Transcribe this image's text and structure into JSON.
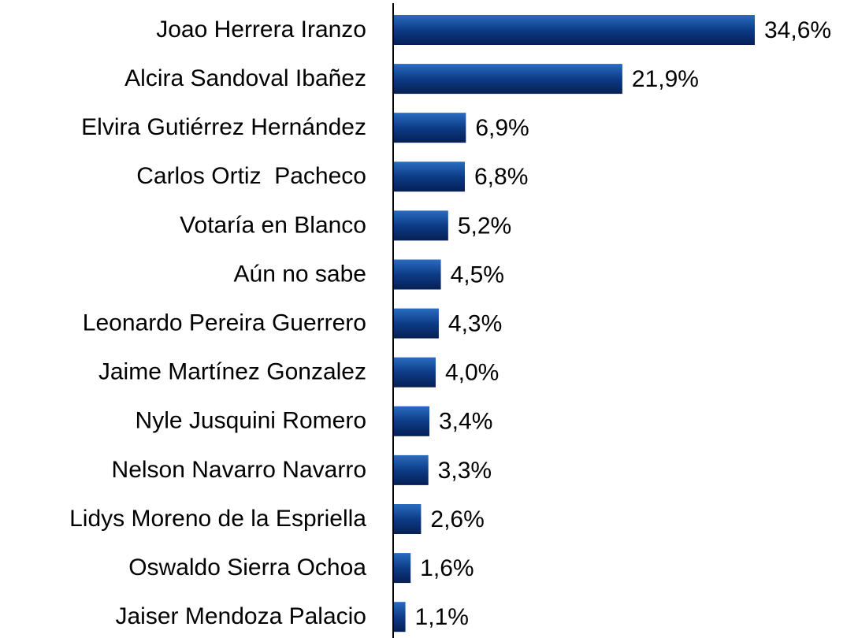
{
  "chart_data": {
    "type": "barh",
    "categories": [
      "Joao Herrera Iranzo",
      "Alcira Sandoval Ibañez",
      "Elvira Gutiérrez Hernández",
      "Carlos Ortiz  Pacheco",
      "Votaría en Blanco",
      "Aún no sabe",
      "Leonardo Pereira Guerrero",
      "Jaime Martínez Gonzalez",
      "Nyle Jusquini Romero",
      "Nelson Navarro Navarro",
      "Lidys Moreno de la Espriella",
      "Oswaldo Sierra Ochoa",
      "Jaiser Mendoza Palacio"
    ],
    "values": [
      34.6,
      21.9,
      6.9,
      6.8,
      5.2,
      4.5,
      4.3,
      4.0,
      3.4,
      3.3,
      2.6,
      1.6,
      1.1
    ],
    "value_labels": [
      "34,6%",
      "21,9%",
      "6,9%",
      "6,8%",
      "5,2%",
      "4,5%",
      "4,3%",
      "4,0%",
      "3,4%",
      "3,3%",
      "2,6%",
      "1,6%",
      "1,1%"
    ],
    "color": "#0d3c86"
  }
}
